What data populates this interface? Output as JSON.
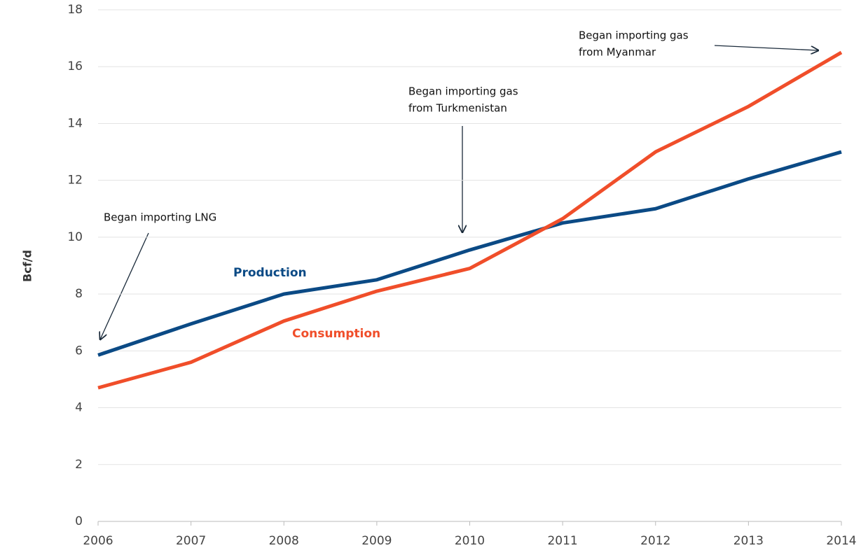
{
  "chart_data": {
    "type": "line",
    "y_label": "Bcf/d",
    "x": [
      2006,
      2007,
      2008,
      2009,
      2010,
      2011,
      2012,
      2013,
      2014
    ],
    "xlim": [
      2006,
      2014
    ],
    "xticks": [
      2006,
      2007,
      2008,
      2009,
      2010,
      2011,
      2012,
      2013,
      2014
    ],
    "ylim": [
      0,
      18
    ],
    "yticks": [
      0,
      2,
      4,
      6,
      8,
      10,
      12,
      14,
      16,
      18
    ],
    "grid": true,
    "series": [
      {
        "name": "Production",
        "color": "#0b4a85",
        "values": [
          5.85,
          6.95,
          8.0,
          8.5,
          9.55,
          10.5,
          11.0,
          12.05,
          13.0
        ]
      },
      {
        "name": "Consumption",
        "color": "#f04e2a",
        "values": [
          4.7,
          5.6,
          7.05,
          8.1,
          8.9,
          10.65,
          13.0,
          14.6,
          16.5
        ]
      }
    ],
    "annotations": [
      {
        "lines": [
          "Began importing LNG"
        ]
      },
      {
        "lines": [
          "Began importing gas",
          "from Turkmenistan"
        ]
      },
      {
        "lines": [
          "Began importing gas",
          "from Myanmar"
        ]
      }
    ]
  }
}
